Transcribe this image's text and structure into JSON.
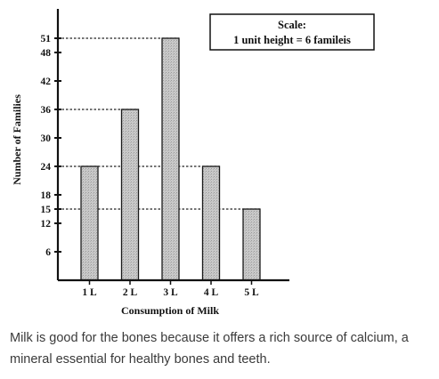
{
  "chart_data": {
    "type": "bar",
    "categories": [
      "1 L",
      "2 L",
      "3 L",
      "4 L",
      "5 L"
    ],
    "values": [
      24,
      36,
      51,
      24,
      15
    ],
    "xlabel": "Consumption of Milk",
    "ylabel": "Number of Families",
    "y_ticks": [
      6,
      12,
      15,
      18,
      24,
      30,
      36,
      42,
      48,
      51
    ],
    "ylim": [
      0,
      57
    ],
    "guide_values": [
      51,
      36,
      24,
      15
    ],
    "grid": false,
    "legend": {
      "title": "Scale:",
      "text": "1 unit height = 6 famileis",
      "placement": "top-right"
    },
    "colors": {
      "bar_fill": "#c4c4c4",
      "bar_stroke": "#1a1a1a",
      "axis": "#111111"
    }
  },
  "caption": {
    "text": "Milk is good for the bones because it offers a rich source of calcium, a mineral essential for healthy bones and teeth."
  }
}
